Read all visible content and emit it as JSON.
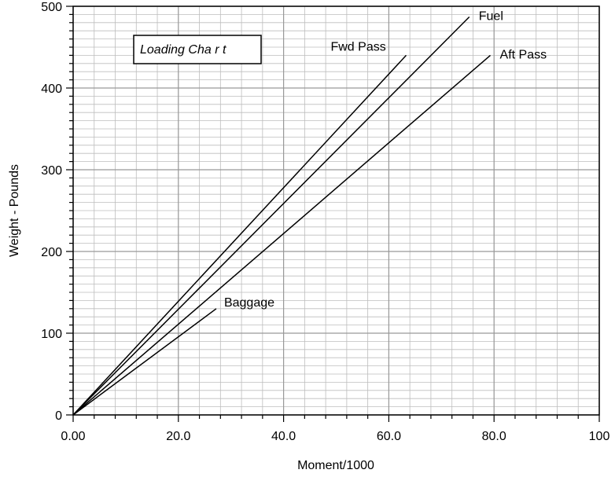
{
  "chart_data": {
    "type": "line",
    "title": "Loading Cha r t",
    "xlabel": "Moment/1000",
    "ylabel": "Weight - Pounds",
    "xlim": [
      0,
      100
    ],
    "ylim": [
      0,
      500
    ],
    "xticks": [
      "0.00",
      "20.0",
      "40.0",
      "60.0",
      "80.0",
      "100"
    ],
    "yticks": [
      "0",
      "100",
      "200",
      "300",
      "400",
      "500"
    ],
    "x_tick_values": [
      0,
      20,
      40,
      60,
      80,
      100
    ],
    "y_tick_values": [
      0,
      100,
      200,
      300,
      400,
      500
    ],
    "grid": true,
    "minor_grid": true,
    "series": [
      {
        "name": "Fwd Pass",
        "x": [
          0,
          63.3
        ],
        "y": [
          0,
          440
        ]
      },
      {
        "name": "Fuel",
        "x": [
          0,
          75.3
        ],
        "y": [
          0,
          487
        ]
      },
      {
        "name": "Aft Pass",
        "x": [
          0,
          79.3
        ],
        "y": [
          0,
          440
        ]
      },
      {
        "name": "Baggage",
        "x": [
          0,
          27.2
        ],
        "y": [
          0,
          130
        ]
      }
    ]
  }
}
